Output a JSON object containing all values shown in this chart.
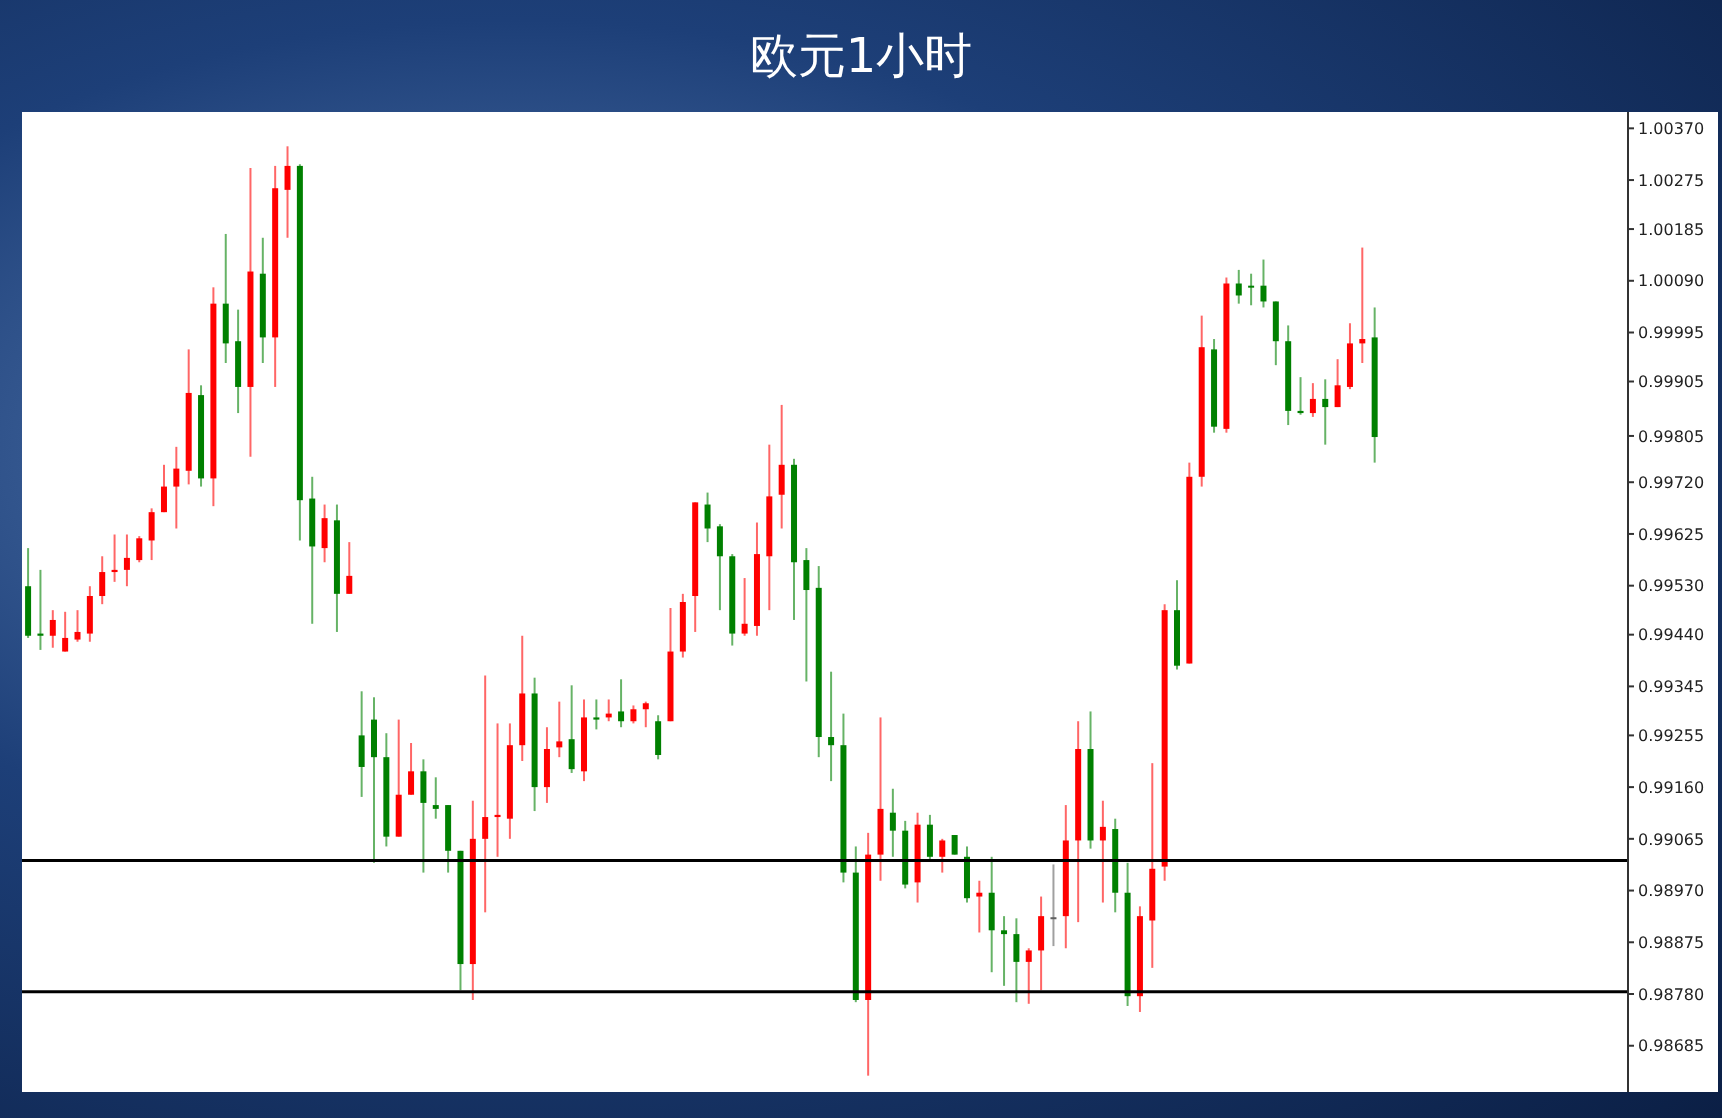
{
  "chart_data": {
    "type": "candlestick",
    "title": "欧元1小时",
    "categories": [
      null,
      null,
      null,
      null,
      null,
      null,
      null,
      null,
      null,
      null,
      null,
      null,
      null,
      null,
      null,
      null,
      null,
      null,
      null,
      null,
      null,
      null,
      null,
      null,
      null,
      null,
      null,
      null,
      null,
      null,
      null,
      null,
      null,
      null,
      null,
      null,
      null,
      null,
      null,
      null,
      null,
      null,
      null,
      null,
      null,
      null,
      null,
      null,
      null,
      null,
      null,
      null,
      null,
      null,
      null,
      null,
      null,
      null,
      null,
      null,
      null,
      null,
      null,
      null,
      null,
      null,
      null,
      null,
      null,
      null,
      null,
      null,
      null,
      null,
      null,
      null,
      null,
      null,
      null,
      null,
      null,
      null,
      null,
      null,
      null,
      null,
      null,
      null,
      null,
      null,
      null,
      null,
      null,
      null,
      null,
      null,
      null,
      null,
      null,
      null,
      null,
      null,
      null,
      null,
      null,
      null,
      null,
      null,
      null,
      null,
      null,
      null,
      null,
      null,
      null,
      null,
      null,
      null,
      null,
      null,
      null,
      null,
      null,
      null,
      null,
      null,
      null,
      null,
      null,
      null
    ],
    "ohlc": [
      [
        0.99529,
        0.99599,
        0.99434,
        0.99438
      ],
      [
        0.99442,
        0.99559,
        0.99412,
        0.99438
      ],
      [
        0.99438,
        0.99485,
        0.99416,
        0.99467
      ],
      [
        0.99409,
        0.99482,
        0.99409,
        0.99434
      ],
      [
        0.99431,
        0.99485,
        0.99427,
        0.99445
      ],
      [
        0.99442,
        0.99529,
        0.99427,
        0.99511
      ],
      [
        0.99511,
        0.99584,
        0.99496,
        0.99555
      ],
      [
        0.99555,
        0.99624,
        0.99537,
        0.99559
      ],
      [
        0.99559,
        0.99624,
        0.99529,
        0.99581
      ],
      [
        0.99577,
        0.99621,
        0.99573,
        0.99617
      ],
      [
        0.99613,
        0.99672,
        0.99577,
        0.99665
      ],
      [
        0.99665,
        0.99752,
        0.99665,
        0.99712
      ],
      [
        0.99712,
        0.99785,
        0.99635,
        0.99745
      ],
      [
        0.99741,
        0.99964,
        0.99716,
        0.99884
      ],
      [
        0.9988,
        0.99898,
        0.99712,
        0.99727
      ],
      [
        0.99727,
        1.00078,
        0.99676,
        1.00048
      ],
      [
        1.00048,
        1.00176,
        0.99939,
        0.99975
      ],
      [
        0.99979,
        1.00037,
        0.99847,
        0.99895
      ],
      [
        0.99895,
        1.00297,
        0.99767,
        1.00107
      ],
      [
        1.00103,
        1.00169,
        0.99939,
        0.99986
      ],
      [
        0.99986,
        1.00301,
        0.99895,
        1.0026
      ],
      [
        1.00257,
        1.00337,
        1.00169,
        1.00301
      ],
      [
        1.00301,
        1.00304,
        0.99613,
        0.99687
      ],
      [
        0.9969,
        0.9973,
        0.9946,
        0.99602
      ],
      [
        0.99599,
        0.99679,
        0.99573,
        0.99654
      ],
      [
        0.9965,
        0.99679,
        0.99445,
        0.99515
      ],
      [
        0.99515,
        0.9961,
        0.99515,
        0.99548
      ],
      [
        0.99255,
        0.99336,
        0.99142,
        0.99197
      ],
      [
        0.99284,
        0.99325,
        0.99021,
        0.99215
      ],
      [
        0.99215,
        0.99259,
        0.99051,
        0.99069
      ],
      [
        0.99069,
        0.99284,
        0.99069,
        0.99146
      ],
      [
        0.99146,
        0.99241,
        0.99146,
        0.99189
      ],
      [
        0.99189,
        0.99211,
        0.99003,
        0.99131
      ],
      [
        0.99127,
        0.99178,
        0.99102,
        0.9912
      ],
      [
        0.99127,
        0.99127,
        0.99003,
        0.99043
      ],
      [
        0.99043,
        0.99043,
        0.98787,
        0.98835
      ],
      [
        0.98835,
        0.99135,
        0.98769,
        0.99065
      ],
      [
        0.99065,
        0.99365,
        0.9893,
        0.99105
      ],
      [
        0.99105,
        0.99277,
        0.99032,
        0.99109
      ],
      [
        0.99102,
        0.99277,
        0.99065,
        0.99237
      ],
      [
        0.99237,
        0.99438,
        0.99208,
        0.99332
      ],
      [
        0.99332,
        0.99361,
        0.99116,
        0.9916
      ],
      [
        0.9916,
        0.9927,
        0.99131,
        0.9923
      ],
      [
        0.99233,
        0.99317,
        0.99215,
        0.99244
      ],
      [
        0.99248,
        0.99347,
        0.99186,
        0.99193
      ],
      [
        0.99189,
        0.99321,
        0.99171,
        0.99288
      ],
      [
        0.99288,
        0.99321,
        0.99266,
        0.99284
      ],
      [
        0.99288,
        0.99321,
        0.99281,
        0.99295
      ],
      [
        0.99299,
        0.99358,
        0.9927,
        0.99281
      ],
      [
        0.99281,
        0.9931,
        0.99277,
        0.99303
      ],
      [
        0.99303,
        0.99317,
        0.9927,
        0.99314
      ],
      [
        0.99281,
        0.99292,
        0.99211,
        0.99219
      ],
      [
        0.99281,
        0.99489,
        0.99281,
        0.99409
      ],
      [
        0.99409,
        0.99515,
        0.99398,
        0.995
      ],
      [
        0.99511,
        0.99683,
        0.99445,
        0.99683
      ],
      [
        0.99679,
        0.99701,
        0.9961,
        0.99635
      ],
      [
        0.99639,
        0.99643,
        0.99485,
        0.99584
      ],
      [
        0.99584,
        0.99588,
        0.9942,
        0.99442
      ],
      [
        0.99442,
        0.99544,
        0.99438,
        0.9946
      ],
      [
        0.99456,
        0.99646,
        0.99438,
        0.99588
      ],
      [
        0.99584,
        0.99789,
        0.99485,
        0.99694
      ],
      [
        0.99697,
        0.99862,
        0.99635,
        0.99752
      ],
      [
        0.99752,
        0.99763,
        0.99467,
        0.99573
      ],
      [
        0.99577,
        0.99599,
        0.99354,
        0.99522
      ],
      [
        0.99526,
        0.99566,
        0.99215,
        0.99252
      ],
      [
        0.99252,
        0.99372,
        0.99171,
        0.99237
      ],
      [
        0.99237,
        0.99295,
        0.98985,
        0.99003
      ],
      [
        0.99003,
        0.99051,
        0.98765,
        0.98769
      ],
      [
        0.98769,
        0.99076,
        0.9863,
        0.99036
      ],
      [
        0.99036,
        0.99288,
        0.98988,
        0.9912
      ],
      [
        0.99113,
        0.99157,
        0.99032,
        0.9908
      ],
      [
        0.9908,
        0.99098,
        0.98974,
        0.98981
      ],
      [
        0.98985,
        0.99113,
        0.98948,
        0.99091
      ],
      [
        0.99091,
        0.99109,
        0.99025,
        0.99032
      ],
      [
        0.99032,
        0.99065,
        0.99003,
        0.99062
      ],
      [
        0.99072,
        0.99072,
        0.99036,
        0.99036
      ],
      [
        0.99032,
        0.99051,
        0.98948,
        0.98956
      ],
      [
        0.98959,
        0.98988,
        0.98893,
        0.98966
      ],
      [
        0.98966,
        0.99032,
        0.9882,
        0.98897
      ],
      [
        0.98897,
        0.98923,
        0.98795,
        0.9889
      ],
      [
        0.9889,
        0.98919,
        0.98765,
        0.98839
      ],
      [
        0.98839,
        0.98864,
        0.98762,
        0.9886
      ],
      [
        0.9886,
        0.98959,
        0.98787,
        0.98923
      ],
      [
        0.98921,
        0.99018,
        0.98868,
        0.98921
      ],
      [
        0.98923,
        0.99127,
        0.98864,
        0.99062
      ],
      [
        0.99062,
        0.99281,
        0.98912,
        0.9923
      ],
      [
        0.9923,
        0.99299,
        0.99047,
        0.99062
      ],
      [
        0.99062,
        0.99135,
        0.98948,
        0.99087
      ],
      [
        0.99083,
        0.99102,
        0.9893,
        0.98966
      ],
      [
        0.98966,
        0.99021,
        0.98758,
        0.98776
      ],
      [
        0.98776,
        0.98941,
        0.98747,
        0.98923
      ],
      [
        0.98915,
        0.99204,
        0.98828,
        0.9901
      ],
      [
        0.99014,
        0.99496,
        0.98988,
        0.99485
      ],
      [
        0.99485,
        0.9954,
        0.99376,
        0.99383
      ],
      [
        0.99387,
        0.99756,
        0.99387,
        0.9973
      ],
      [
        0.9973,
        1.00026,
        0.99712,
        0.99968
      ],
      [
        0.99964,
        0.99983,
        0.99811,
        0.99822
      ],
      [
        0.99818,
        1.00096,
        0.99811,
        1.00085
      ],
      [
        1.00085,
        1.0011,
        1.00048,
        1.00063
      ],
      [
        1.00081,
        1.00103,
        1.00045,
        1.00078
      ],
      [
        1.00081,
        1.00129,
        1.00041,
        1.00052
      ],
      [
        1.00052,
        1.00052,
        0.99935,
        0.99979
      ],
      [
        0.99979,
        1.00008,
        0.99825,
        0.99851
      ],
      [
        0.99851,
        0.99913,
        0.99844,
        0.99847
      ],
      [
        0.99847,
        0.99902,
        0.9984,
        0.99873
      ],
      [
        0.99873,
        0.99909,
        0.99789,
        0.99858
      ],
      [
        0.99858,
        0.99946,
        0.99858,
        0.99898
      ],
      [
        0.99895,
        1.00012,
        0.99891,
        0.99975
      ],
      [
        0.99975,
        1.00151,
        0.99939,
        0.99983
      ],
      [
        0.99986,
        1.00041,
        0.99756,
        0.99803
      ],
      null,
      null,
      null,
      null,
      null,
      null,
      null,
      null,
      null,
      null,
      null,
      null,
      null,
      null,
      null,
      null,
      null,
      null,
      null,
      null
    ],
    "colors": [
      "#008000",
      "#008000",
      "#ff0000",
      "#ff0000",
      "#ff0000",
      "#ff0000",
      "#ff0000",
      "#ff0000",
      "#ff0000",
      "#ff0000",
      "#ff0000",
      "#ff0000",
      "#ff0000",
      "#ff0000",
      "#008000",
      "#ff0000",
      "#008000",
      "#008000",
      "#ff0000",
      "#008000",
      "#ff0000",
      "#ff0000",
      "#008000",
      "#008000",
      "#ff0000",
      "#008000",
      "#ff0000",
      "#008000",
      "#008000",
      "#008000",
      "#ff0000",
      "#ff0000",
      "#008000",
      "#008000",
      "#008000",
      "#008000",
      "#ff0000",
      "#ff0000",
      "#ff0000",
      "#ff0000",
      "#ff0000",
      "#008000",
      "#ff0000",
      "#ff0000",
      "#008000",
      "#ff0000",
      "#008000",
      "#ff0000",
      "#008000",
      "#ff0000",
      "#ff0000",
      "#008000",
      "#ff0000",
      "#ff0000",
      "#ff0000",
      "#008000",
      "#008000",
      "#008000",
      "#ff0000",
      "#ff0000",
      "#ff0000",
      "#ff0000",
      "#008000",
      "#008000",
      "#008000",
      "#008000",
      "#008000",
      "#008000",
      "#ff0000",
      "#ff0000",
      "#008000",
      "#008000",
      "#ff0000",
      "#008000",
      "#ff0000",
      "#008000",
      "#008000",
      "#ff0000",
      "#008000",
      "#008000",
      "#008000",
      "#ff0000",
      "#ff0000",
      "#606060",
      "#ff0000",
      "#ff0000",
      "#008000",
      "#ff0000",
      "#008000",
      "#008000",
      "#ff0000",
      "#ff0000",
      "#ff0000",
      "#008000",
      "#ff0000",
      "#ff0000",
      "#008000",
      "#ff0000",
      "#008000",
      "#008000",
      "#008000",
      "#008000",
      "#008000",
      "#008000",
      "#ff0000",
      "#008000",
      "#ff0000",
      "#ff0000",
      "#ff0000",
      "#008000",
      null,
      null,
      null,
      null,
      null,
      null,
      null,
      null,
      null,
      null,
      null,
      null,
      null,
      null,
      null,
      null,
      null,
      null,
      null,
      null
    ],
    "ylim": [
      0.986,
      1.004
    ],
    "yticks": [
      {
        "value": 1.0037,
        "label": "1.00370"
      },
      {
        "value": 1.00275,
        "label": "1.00275"
      },
      {
        "value": 1.00185,
        "label": "1.00185"
      },
      {
        "value": 1.0009,
        "label": "1.00090"
      },
      {
        "value": 0.99995,
        "label": "0.99995"
      },
      {
        "value": 0.99905,
        "label": "0.99905"
      },
      {
        "value": 0.99805,
        "label": "0.99805"
      },
      {
        "value": 0.9972,
        "label": "0.99720"
      },
      {
        "value": 0.99625,
        "label": "0.99625"
      },
      {
        "value": 0.9953,
        "label": "0.99530"
      },
      {
        "value": 0.9944,
        "label": "0.99440"
      },
      {
        "value": 0.99345,
        "label": "0.99345"
      },
      {
        "value": 0.99255,
        "label": "0.99255"
      },
      {
        "value": 0.9916,
        "label": "0.99160"
      },
      {
        "value": 0.99065,
        "label": "0.99065"
      },
      {
        "value": 0.9897,
        "label": "0.98970"
      },
      {
        "value": 0.98875,
        "label": "0.98875"
      },
      {
        "value": 0.9878,
        "label": "0.98780"
      },
      {
        "value": 0.98685,
        "label": "0.98685"
      }
    ],
    "ref_lines": [
      {
        "axis": "y",
        "value": 0.99025,
        "color": "#000000"
      },
      {
        "axis": "y",
        "value": 0.98784,
        "color": "#000000"
      }
    ],
    "tick_labels": "y",
    "grid": false,
    "legend": false
  }
}
